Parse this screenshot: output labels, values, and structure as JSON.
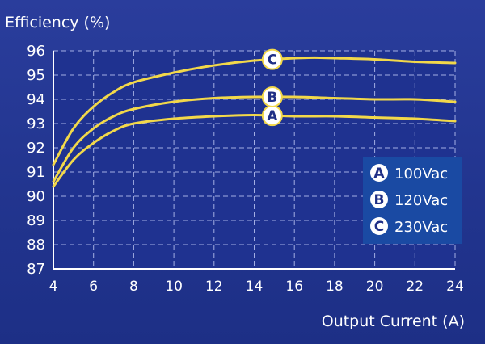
{
  "chart_data": {
    "type": "line",
    "title": "",
    "ylabel": "Efficiency (%)",
    "xlabel": "Output Current (A)",
    "xlim": [
      4,
      24
    ],
    "ylim": [
      87,
      96
    ],
    "xticks": [
      "4",
      "6",
      "8",
      "10",
      "12",
      "14",
      "16",
      "18",
      "20",
      "22",
      "24"
    ],
    "yticks": [
      "87",
      "88",
      "89",
      "90",
      "91",
      "92",
      "93",
      "94",
      "95",
      "96"
    ],
    "grid": true,
    "legend_position": "right",
    "line_color": "#f2d84a",
    "series": [
      {
        "name": "100Vac",
        "marker": "A",
        "x": [
          4,
          5,
          6,
          7,
          8,
          10,
          12,
          14,
          16,
          18,
          20,
          22,
          24
        ],
        "y": [
          90.4,
          91.5,
          92.2,
          92.7,
          93.0,
          93.2,
          93.3,
          93.35,
          93.3,
          93.3,
          93.25,
          93.2,
          93.1
        ]
      },
      {
        "name": "120Vac",
        "marker": "B",
        "x": [
          4,
          5,
          6,
          7,
          8,
          10,
          12,
          14,
          16,
          18,
          20,
          22,
          24
        ],
        "y": [
          90.6,
          92.0,
          92.8,
          93.3,
          93.6,
          93.9,
          94.05,
          94.1,
          94.1,
          94.05,
          94.0,
          94.0,
          93.9
        ]
      },
      {
        "name": "230Vac",
        "marker": "C",
        "x": [
          4,
          5,
          6,
          7,
          8,
          10,
          12,
          14,
          16,
          17,
          18,
          20,
          22,
          24
        ],
        "y": [
          91.3,
          92.8,
          93.7,
          94.3,
          94.7,
          95.1,
          95.4,
          95.6,
          95.7,
          95.72,
          95.7,
          95.65,
          95.55,
          95.5
        ]
      }
    ]
  },
  "colors": {
    "background": "#22358f",
    "plot_area": "#1f3290",
    "grid": "#d0d8ff",
    "legend_box": "#1a4aa3"
  }
}
